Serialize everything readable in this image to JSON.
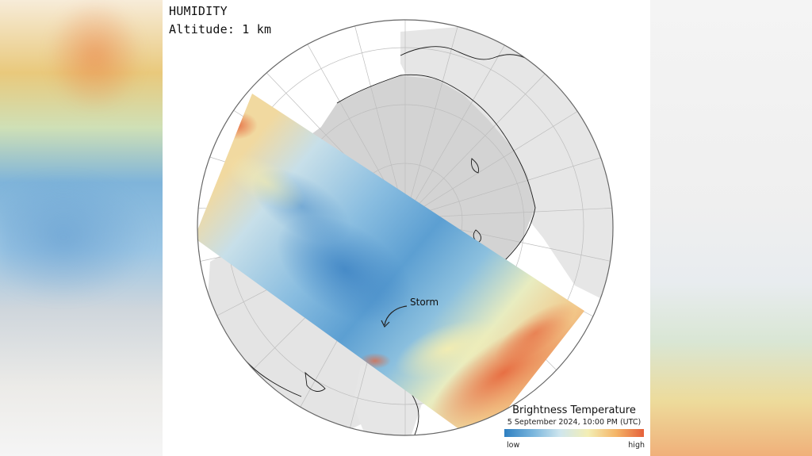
{
  "title": "HUMIDITY",
  "subtitle": "Altitude: 1 km",
  "annotation": {
    "label": "Storm"
  },
  "legend": {
    "title": "Brightness Temperature",
    "date": "5 September 2024, 10:00 PM (UTC)",
    "low_label": "low",
    "high_label": "high",
    "scale_colors": [
      "#2f7fc1",
      "#77b4dc",
      "#cfe6ee",
      "#f3eeb4",
      "#f4b567",
      "#e5603a"
    ]
  },
  "colors": {
    "ocean": "#ffffff",
    "land": "#e6e6e6",
    "arctic_region": "#d2d2d2",
    "graticule": "#bdbdbd",
    "coast": "#1a1a1a"
  }
}
